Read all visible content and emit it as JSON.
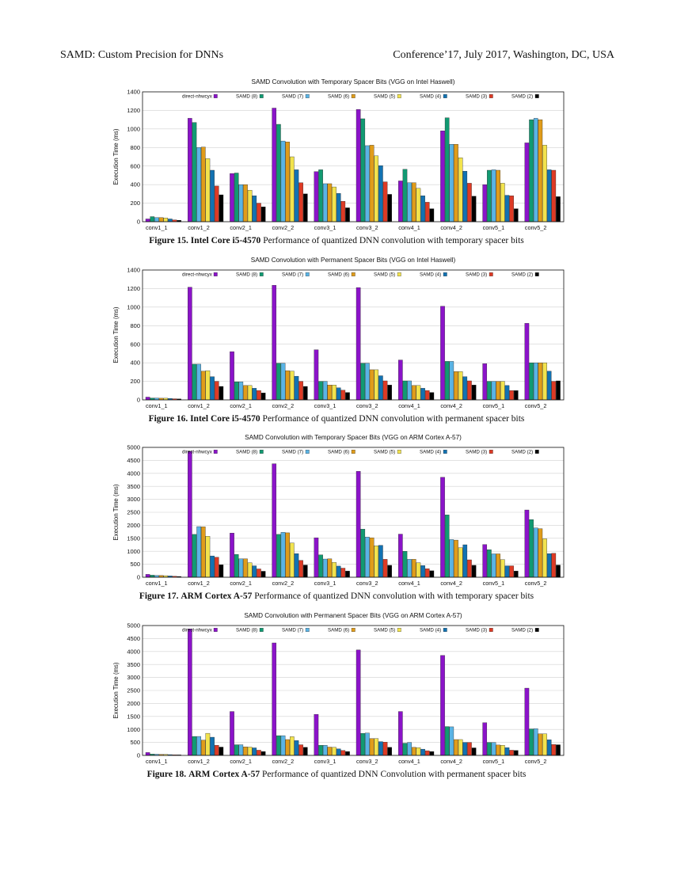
{
  "header": {
    "left": "SAMD: Custom Precision for DNNs",
    "right": "Conference’17, July 2017, Washington, DC, USA"
  },
  "legend": {
    "entries": [
      "direct-nhwcyx",
      "SAMD (8)",
      "SAMD (7)",
      "SAMD (6)",
      "SAMD (5)",
      "SAMD (4)",
      "SAMD (3)",
      "SAMD (2)"
    ],
    "colors": [
      "#8b13c9",
      "#119a72",
      "#5ab4e5",
      "#e09c1a",
      "#f2e34d",
      "#1272b2",
      "#dd3a25",
      "#000000"
    ]
  },
  "figures": [
    {
      "caption_label": "Figure 15.",
      "caption_processor": "Intel Core i5-4570",
      "caption_text": " Performance of quantized DNN convolution with temporary spacer bits"
    },
    {
      "caption_label": "Figure 16.",
      "caption_processor": "Intel Core i5-4570",
      "caption_text": " Performance of quantized DNN convolution with permanent spacer bits"
    },
    {
      "caption_label": "Figure 17.",
      "caption_processor": "ARM Cortex A-57",
      "caption_text": " Performance of quantized DNN convolution with with temporary spacer bits"
    },
    {
      "caption_label": "Figure 18.",
      "caption_processor": "ARM Cortex A-57",
      "caption_text": " Performance of quantized DNN Convolution with permanent spacer bits"
    }
  ],
  "chart_data": [
    {
      "type": "bar",
      "title": "SAMD Convolution with Temporary Spacer Bits (VGG on Intel Haswell)",
      "xlabel": "",
      "ylabel": "Execution Time (ms)",
      "ylim": [
        0,
        1400
      ],
      "yticks": [
        0,
        200,
        400,
        600,
        800,
        1000,
        1200,
        1400
      ],
      "grid": true,
      "legend_position": "top",
      "categories": [
        "conv1_1",
        "conv1_2",
        "conv2_1",
        "conv2_2",
        "conv3_1",
        "conv3_2",
        "conv4_1",
        "conv4_2",
        "conv5_1",
        "conv5_2"
      ],
      "series": [
        {
          "name": "direct-nhwcyx",
          "values": [
            30,
            1115,
            520,
            1225,
            540,
            1210,
            440,
            980,
            400,
            850
          ]
        },
        {
          "name": "SAMD (8)",
          "values": [
            55,
            1070,
            525,
            1050,
            560,
            1110,
            565,
            1120,
            555,
            1100
          ]
        },
        {
          "name": "SAMD (7)",
          "values": [
            45,
            800,
            400,
            870,
            410,
            820,
            420,
            835,
            560,
            1115
          ]
        },
        {
          "name": "SAMD (6)",
          "values": [
            45,
            805,
            400,
            860,
            410,
            825,
            420,
            835,
            555,
            1100
          ]
        },
        {
          "name": "SAMD (5)",
          "values": [
            40,
            680,
            340,
            700,
            375,
            710,
            360,
            690,
            415,
            825
          ]
        },
        {
          "name": "SAMD (4)",
          "values": [
            30,
            555,
            280,
            560,
            305,
            605,
            280,
            545,
            285,
            560
          ]
        },
        {
          "name": "SAMD (3)",
          "values": [
            20,
            385,
            200,
            420,
            220,
            430,
            210,
            415,
            280,
            555
          ]
        },
        {
          "name": "SAMD (2)",
          "values": [
            15,
            290,
            160,
            300,
            150,
            295,
            140,
            275,
            140,
            270
          ]
        }
      ]
    },
    {
      "type": "bar",
      "title": "SAMD Convolution with Permanent Spacer Bits (VGG on Intel Haswell)",
      "xlabel": "",
      "ylabel": "Execution Time (ms)",
      "ylim": [
        0,
        1400
      ],
      "yticks": [
        0,
        200,
        400,
        600,
        800,
        1000,
        1200,
        1400
      ],
      "grid": true,
      "legend_position": "top",
      "categories": [
        "conv1_1",
        "conv1_2",
        "conv2_1",
        "conv2_2",
        "conv3_1",
        "conv3_2",
        "conv4_1",
        "conv4_2",
        "conv5_1",
        "conv5_2"
      ],
      "series": [
        {
          "name": "direct-nhwcyx",
          "values": [
            30,
            1215,
            520,
            1235,
            540,
            1210,
            430,
            1010,
            390,
            825
          ]
        },
        {
          "name": "SAMD (8)",
          "values": [
            20,
            385,
            195,
            395,
            200,
            395,
            205,
            415,
            200,
            400
          ]
        },
        {
          "name": "SAMD (7)",
          "values": [
            20,
            385,
            195,
            395,
            200,
            395,
            205,
            415,
            200,
            400
          ]
        },
        {
          "name": "SAMD (6)",
          "values": [
            18,
            310,
            155,
            315,
            160,
            325,
            155,
            305,
            200,
            400
          ]
        },
        {
          "name": "SAMD (5)",
          "values": [
            18,
            315,
            155,
            310,
            160,
            325,
            155,
            305,
            200,
            400
          ]
        },
        {
          "name": "SAMD (4)",
          "values": [
            15,
            250,
            125,
            255,
            130,
            260,
            125,
            250,
            155,
            310
          ]
        },
        {
          "name": "SAMD (3)",
          "values": [
            12,
            200,
            100,
            200,
            105,
            205,
            100,
            205,
            100,
            200
          ]
        },
        {
          "name": "SAMD (2)",
          "values": [
            10,
            145,
            75,
            145,
            80,
            160,
            80,
            160,
            100,
            205
          ]
        }
      ]
    },
    {
      "type": "bar",
      "title": "SAMD Convolution with Temporary Spacer Bits (VGG on ARM Cortex A-57)",
      "xlabel": "",
      "ylabel": "Execution Time (ms)",
      "ylim": [
        0,
        5000
      ],
      "yticks": [
        0,
        500,
        1000,
        1500,
        2000,
        2500,
        3000,
        3500,
        4000,
        4500,
        5000
      ],
      "grid": true,
      "legend_position": "top",
      "categories": [
        "conv1_1",
        "conv1_2",
        "conv2_1",
        "conv2_2",
        "conv3_1",
        "conv3_2",
        "conv4_1",
        "conv4_2",
        "conv5_1",
        "conv5_2"
      ],
      "series": [
        {
          "name": "direct-nhwcyx",
          "values": [
            110,
            4850,
            1700,
            4370,
            1520,
            4080,
            1660,
            3850,
            1260,
            2590
          ]
        },
        {
          "name": "SAMD (8)",
          "values": [
            80,
            1650,
            880,
            1650,
            860,
            1850,
            1000,
            2400,
            1060,
            2220
          ]
        },
        {
          "name": "SAMD (7)",
          "values": [
            70,
            1950,
            710,
            1730,
            700,
            1550,
            690,
            1450,
            900,
            1900
          ]
        },
        {
          "name": "SAMD (6)",
          "values": [
            70,
            1940,
            710,
            1710,
            710,
            1520,
            690,
            1430,
            900,
            1870
          ]
        },
        {
          "name": "SAMD (5)",
          "values": [
            60,
            1580,
            560,
            1320,
            570,
            1210,
            560,
            1140,
            680,
            1480
          ]
        },
        {
          "name": "SAMD (4)",
          "values": [
            50,
            820,
            440,
            910,
            430,
            1230,
            450,
            1250,
            440,
            910
          ]
        },
        {
          "name": "SAMD (3)",
          "values": [
            40,
            770,
            320,
            650,
            350,
            690,
            330,
            670,
            440,
            920
          ]
        },
        {
          "name": "SAMD (2)",
          "values": [
            30,
            480,
            230,
            470,
            240,
            460,
            250,
            460,
            240,
            470
          ]
        }
      ]
    },
    {
      "type": "bar",
      "title": "SAMD Convolution with Permanent Spacer Bits (VGG on ARM Cortex A-57)",
      "xlabel": "",
      "ylabel": "Execution Time (ms)",
      "ylim": [
        0,
        5000
      ],
      "yticks": [
        0,
        500,
        1000,
        1500,
        2000,
        2500,
        3000,
        3500,
        4000,
        4500,
        5000
      ],
      "grid": true,
      "legend_position": "top",
      "categories": [
        "conv1_1",
        "conv1_2",
        "conv2_1",
        "conv2_2",
        "conv3_1",
        "conv3_2",
        "conv4_1",
        "conv4_2",
        "conv5_1",
        "conv5_2"
      ],
      "series": [
        {
          "name": "direct-nhwcyx",
          "values": [
            110,
            4870,
            1690,
            4330,
            1580,
            4060,
            1690,
            3850,
            1260,
            2590
          ]
        },
        {
          "name": "SAMD (8)",
          "values": [
            50,
            730,
            410,
            760,
            390,
            850,
            470,
            1110,
            500,
            1020
          ]
        },
        {
          "name": "SAMD (7)",
          "values": [
            45,
            730,
            410,
            760,
            390,
            860,
            500,
            1100,
            500,
            1030
          ]
        },
        {
          "name": "SAMD (6)",
          "values": [
            40,
            590,
            330,
            610,
            320,
            650,
            310,
            610,
            400,
            830
          ]
        },
        {
          "name": "SAMD (5)",
          "values": [
            40,
            850,
            320,
            720,
            310,
            650,
            300,
            610,
            390,
            830
          ]
        },
        {
          "name": "SAMD (4)",
          "values": [
            30,
            700,
            290,
            570,
            250,
            530,
            240,
            500,
            300,
            600
          ]
        },
        {
          "name": "SAMD (3)",
          "values": [
            25,
            390,
            200,
            410,
            190,
            510,
            180,
            500,
            200,
            420
          ]
        },
        {
          "name": "SAMD (2)",
          "values": [
            20,
            320,
            150,
            310,
            150,
            310,
            150,
            290,
            190,
            410
          ]
        }
      ]
    }
  ]
}
